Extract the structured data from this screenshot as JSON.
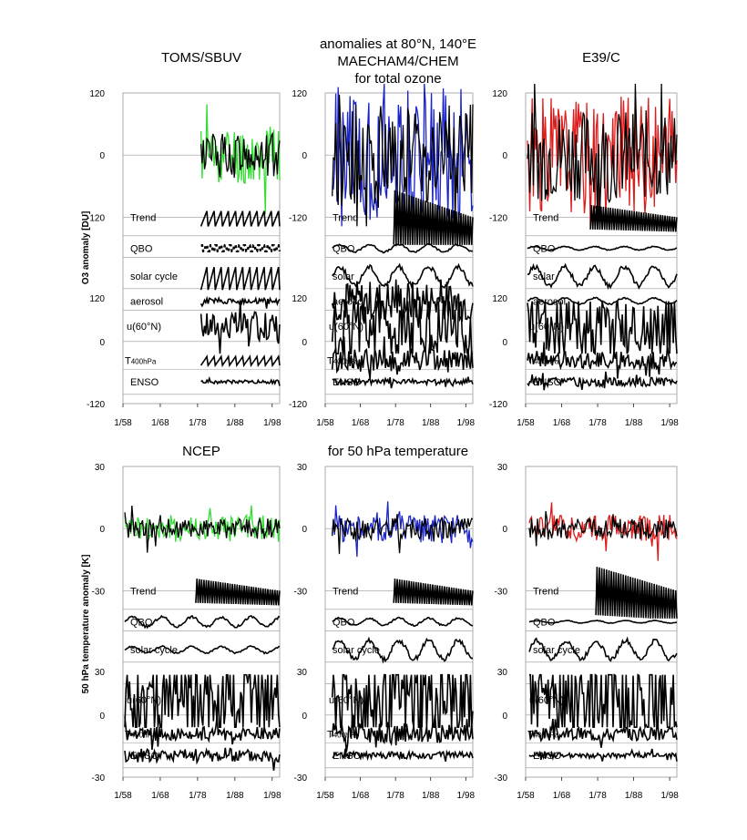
{
  "figure": {
    "top_title": [
      "anomalies at 80°N, 140°E",
      "MAECHAM4/CHEM",
      "for total ozone"
    ],
    "bottom_title": "for 50 hPa temperature",
    "top_ylabel": "O3 anomaly [DU]",
    "bottom_ylabel": "50 hPa temperature anomaly [K]"
  },
  "chart_data": [
    {
      "type": "line",
      "name": "TOMS/SBUV",
      "title": "TOMS/SBUV",
      "row": "ozone",
      "ylabel": "O3 anomaly [DU]",
      "upper_ylim": [
        -120,
        120
      ],
      "lower_ylim": [
        -120,
        120
      ],
      "upper_yticks": [
        "120",
        "0",
        "-120"
      ],
      "lower_yticks": [
        "120",
        "0",
        "-120"
      ],
      "xlim": [
        1958,
        2000
      ],
      "xticks": [
        "1/58",
        "1/68",
        "1/78",
        "1/88",
        "1/98"
      ],
      "series": [
        {
          "label": "",
          "color": "#33dd33",
          "start": 1978.9,
          "amp": 26,
          "lane": "upper",
          "kind": "noisy",
          "seed": 11
        },
        {
          "label": "",
          "color": "#000000",
          "start": 1978.9,
          "amp": 20,
          "lane": "upper",
          "kind": "noisy",
          "seed": 12
        },
        {
          "label": "Trend",
          "color": "#000000",
          "start": 1978.9,
          "amp": 6,
          "lane": "trend",
          "kind": "saw",
          "seed": 13
        },
        {
          "label": "QBO",
          "color": "#000000",
          "start": 1978.9,
          "amp": 8,
          "lane": "qbo",
          "kind": "dots",
          "seed": 14
        },
        {
          "label": "solar cycle",
          "color": "#000000",
          "start": 1978.9,
          "amp": 14,
          "lane": "solar",
          "kind": "saw",
          "seed": 15
        },
        {
          "label": "aerosol",
          "color": "#000000",
          "start": 1978.9,
          "amp": 4,
          "lane": "aerosol",
          "kind": "noisy",
          "seed": 16
        },
        {
          "label": "u(60°N)",
          "color": "#000000",
          "start": 1978.9,
          "amp": 12,
          "lane": "u60",
          "kind": "noisy",
          "seed": 17
        },
        {
          "label": "",
          "color": "#000000",
          "start": 1978.9,
          "amp": 6,
          "lane": "t400",
          "kind": "saw",
          "seed": 18
        },
        {
          "label": "ENSO",
          "color": "#000000",
          "start": 1978.9,
          "amp": 2,
          "lane": "enso",
          "kind": "noisy",
          "seed": 19
        }
      ]
    },
    {
      "type": "line",
      "name": "MAECHAM4/CHEM",
      "title": "",
      "row": "ozone",
      "upper_ylim": [
        -120,
        120
      ],
      "lower_ylim": [
        -120,
        120
      ],
      "upper_yticks": [
        "120",
        "0",
        "-120"
      ],
      "lower_yticks": [
        "120",
        "0",
        "-120"
      ],
      "xlim": [
        1958,
        2000
      ],
      "xticks": [
        "1/58",
        "1/68",
        "1/78",
        "1/88",
        "1/98"
      ],
      "series": [
        {
          "label": "",
          "color": "#1a24c8",
          "start": 1960.0,
          "amp": 60,
          "lane": "upper",
          "kind": "noisy",
          "seed": 21
        },
        {
          "label": "",
          "color": "#000000",
          "start": 1960.0,
          "amp": 45,
          "lane": "upper",
          "kind": "noisy",
          "seed": 22
        },
        {
          "label": "Trend",
          "color": "#000000",
          "start": 1977.5,
          "amp": 18,
          "lane": "trend",
          "kind": "sawtrend",
          "seed": 23
        },
        {
          "label": "QBO",
          "color": "#000000",
          "start": 1960.0,
          "amp": 6,
          "lane": "qbo",
          "kind": "wave",
          "seed": 24
        },
        {
          "label": "solar",
          "color": "#000000",
          "start": 1960.0,
          "amp": 12,
          "lane": "solar",
          "kind": "wave",
          "seed": 25
        },
        {
          "label": "aerosol",
          "color": "#000000",
          "start": 1960.0,
          "amp": 28,
          "lane": "aerosol",
          "kind": "noisy",
          "seed": 26
        },
        {
          "label": "u(60°N)",
          "color": "#000000",
          "start": 1960.0,
          "amp": 30,
          "lane": "u60",
          "kind": "noisy",
          "seed": 27
        },
        {
          "label": "",
          "color": "#000000",
          "start": 1960.0,
          "amp": 14,
          "lane": "t400",
          "kind": "noisy",
          "seed": 28
        },
        {
          "label": "ENSO",
          "color": "#000000",
          "start": 1960.0,
          "amp": 3,
          "lane": "enso",
          "kind": "noisy",
          "seed": 29
        }
      ]
    },
    {
      "type": "line",
      "name": "E39/C",
      "title": "E39/C",
      "row": "ozone",
      "upper_ylim": [
        -120,
        120
      ],
      "lower_ylim": [
        -120,
        120
      ],
      "upper_yticks": [
        "120",
        "0",
        "-120"
      ],
      "lower_yticks": [
        "120",
        "0",
        "-120"
      ],
      "xlim": [
        1958,
        2000
      ],
      "xticks": [
        "1/58",
        "1/68",
        "1/78",
        "1/88",
        "1/98"
      ],
      "series": [
        {
          "label": "",
          "color": "#dd1c1c",
          "start": 1958.5,
          "amp": 52,
          "lane": "upper",
          "kind": "noisy",
          "seed": 31
        },
        {
          "label": "",
          "color": "#000000",
          "start": 1958.5,
          "amp": 40,
          "lane": "upper",
          "kind": "noisy",
          "seed": 32
        },
        {
          "label": "Trend",
          "color": "#000000",
          "start": 1976.0,
          "amp": 8,
          "lane": "trend",
          "kind": "sawtrend",
          "seed": 33
        },
        {
          "label": "QBO",
          "color": "#000000",
          "start": 1958.5,
          "amp": 3,
          "lane": "qbo",
          "kind": "wave",
          "seed": 34
        },
        {
          "label": "solar",
          "color": "#000000",
          "start": 1958.5,
          "amp": 12,
          "lane": "solar",
          "kind": "wave",
          "seed": 35
        },
        {
          "label": "aerosol",
          "color": "#000000",
          "start": 1958.5,
          "amp": 5,
          "lane": "aerosol",
          "kind": "wave",
          "seed": 36
        },
        {
          "label": "u(60°N)",
          "color": "#000000",
          "start": 1958.5,
          "amp": 28,
          "lane": "u60",
          "kind": "noisy",
          "seed": 37
        },
        {
          "label": "",
          "color": "#000000",
          "start": 1958.5,
          "amp": 10,
          "lane": "t400",
          "kind": "noisy",
          "seed": 38
        },
        {
          "label": "ENSO",
          "color": "#000000",
          "start": 1958.5,
          "amp": 5,
          "lane": "enso",
          "kind": "noisy",
          "seed": 39
        }
      ]
    },
    {
      "type": "line",
      "name": "NCEP",
      "title": "NCEP",
      "row": "temperature",
      "ylabel": "50 hPa temperature anomaly [K]",
      "upper_ylim": [
        -30,
        30
      ],
      "lower_ylim": [
        -30,
        30
      ],
      "upper_yticks": [
        "30",
        "0",
        "-30"
      ],
      "lower_yticks": [
        "30",
        "0",
        "-30"
      ],
      "xlim": [
        1958,
        2000
      ],
      "xticks": [
        "1/58",
        "1/68",
        "1/78",
        "1/88",
        "1/98"
      ],
      "series": [
        {
          "label": "",
          "color": "#33dd33",
          "start": 1958.5,
          "amp": 12,
          "lane": "upper",
          "kind": "noisy",
          "seed": 41
        },
        {
          "label": "",
          "color": "#000000",
          "start": 1958.5,
          "amp": 9,
          "lane": "upper",
          "kind": "noisy",
          "seed": 42
        },
        {
          "label": "Trend",
          "color": "#000000",
          "start": 1977.5,
          "amp": 2,
          "lane": "trend",
          "kind": "sawtrend",
          "seed": 43
        },
        {
          "label": "QBO",
          "color": "#000000",
          "start": 1958.5,
          "amp": 2,
          "lane": "qbo",
          "kind": "wave",
          "seed": 44
        },
        {
          "label": "solar cycle",
          "color": "#000000",
          "start": 1958.5,
          "amp": 1,
          "lane": "solar",
          "kind": "wave",
          "seed": 45
        },
        {
          "label": "u(60°N)",
          "color": "#000000",
          "start": 1958.5,
          "amp": 9,
          "lane": "u60",
          "kind": "noisy",
          "seed": 46
        },
        {
          "label": "",
          "color": "#000000",
          "start": 1958.5,
          "amp": 2,
          "lane": "t400",
          "kind": "noisy",
          "seed": 47
        },
        {
          "label": "ENSO",
          "color": "#000000",
          "start": 1958.5,
          "amp": 2,
          "lane": "enso",
          "kind": "noisy",
          "seed": 48
        }
      ]
    },
    {
      "type": "line",
      "name": "MAECHAM4/CHEM",
      "title": "",
      "row": "temperature",
      "upper_ylim": [
        -30,
        30
      ],
      "lower_ylim": [
        -30,
        30
      ],
      "upper_yticks": [
        "30",
        "0",
        "-30"
      ],
      "lower_yticks": [
        "30",
        "0",
        "-30"
      ],
      "xlim": [
        1958,
        2000
      ],
      "xticks": [
        "1/58",
        "1/68",
        "1/78",
        "1/88",
        "1/98"
      ],
      "series": [
        {
          "label": "",
          "color": "#1a24c8",
          "start": 1960.0,
          "amp": 13,
          "lane": "upper",
          "kind": "noisy",
          "seed": 51
        },
        {
          "label": "",
          "color": "#000000",
          "start": 1960.0,
          "amp": 10,
          "lane": "upper",
          "kind": "noisy",
          "seed": 52
        },
        {
          "label": "Trend",
          "color": "#000000",
          "start": 1977.5,
          "amp": 2,
          "lane": "trend",
          "kind": "sawtrend",
          "seed": 53
        },
        {
          "label": "QBO",
          "color": "#000000",
          "start": 1960.0,
          "amp": 1.5,
          "lane": "qbo",
          "kind": "wave",
          "seed": 54
        },
        {
          "label": "solar cycle",
          "color": "#000000",
          "start": 1960.0,
          "amp": 3,
          "lane": "solar",
          "kind": "wave",
          "seed": 55
        },
        {
          "label": "u(60°N)",
          "color": "#000000",
          "start": 1960.0,
          "amp": 10,
          "lane": "u60",
          "kind": "noisy",
          "seed": 56
        },
        {
          "label": "",
          "color": "#000000",
          "start": 1960.0,
          "amp": 3,
          "lane": "t400",
          "kind": "noisy",
          "seed": 57
        },
        {
          "label": "ENSO",
          "color": "#000000",
          "start": 1960.0,
          "amp": 1,
          "lane": "enso",
          "kind": "noisy",
          "seed": 58
        }
      ]
    },
    {
      "type": "line",
      "name": "E39/C",
      "title": "",
      "row": "temperature",
      "upper_ylim": [
        -30,
        30
      ],
      "lower_ylim": [
        -30,
        30
      ],
      "upper_yticks": [
        "30",
        "0",
        "-30"
      ],
      "lower_yticks": [
        "30",
        "0",
        "-30"
      ],
      "xlim": [
        1958,
        2000
      ],
      "xticks": [
        "1/58",
        "1/68",
        "1/78",
        "1/88",
        "1/98"
      ],
      "series": [
        {
          "label": "",
          "color": "#dd1c1c",
          "start": 1959.0,
          "amp": 12,
          "lane": "upper",
          "kind": "noisy",
          "seed": 61
        },
        {
          "label": "",
          "color": "#000000",
          "start": 1959.0,
          "amp": 9,
          "lane": "upper",
          "kind": "noisy",
          "seed": 62
        },
        {
          "label": "Trend",
          "color": "#000000",
          "start": 1977.5,
          "amp": 4,
          "lane": "trend",
          "kind": "sawtrend",
          "seed": 63
        },
        {
          "label": "QBO",
          "color": "#000000",
          "start": 1959.0,
          "amp": 0.5,
          "lane": "qbo",
          "kind": "wave",
          "seed": 64
        },
        {
          "label": "solar cycle",
          "color": "#000000",
          "start": 1959.0,
          "amp": 3,
          "lane": "solar",
          "kind": "wave",
          "seed": 65
        },
        {
          "label": "u(60°N)",
          "color": "#000000",
          "start": 1959.0,
          "amp": 10,
          "lane": "u60",
          "kind": "noisy",
          "seed": 66
        },
        {
          "label": "",
          "color": "#000000",
          "start": 1959.0,
          "amp": 2,
          "lane": "t400",
          "kind": "noisy",
          "seed": 67
        },
        {
          "label": "ENSO",
          "color": "#000000",
          "start": 1959.0,
          "amp": 0.8,
          "lane": "enso",
          "kind": "noisy",
          "seed": 68
        }
      ]
    }
  ],
  "lane_labels": {
    "t400_prefix": "T",
    "t400_subscript": "400hPa"
  }
}
